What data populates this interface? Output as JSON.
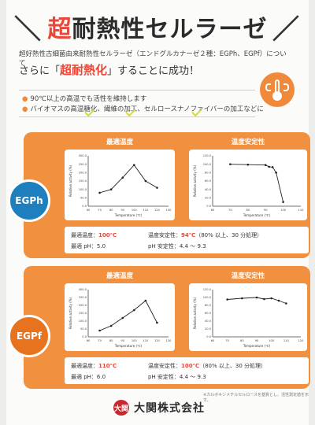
{
  "title": {
    "accent": "超",
    "rest": "耐熱性セルラーゼ"
  },
  "intro": "超好熱性古細菌由来耐熱性セルラーゼ（エンドグルカナーゼ２種：EGPh、EGPf）について",
  "lead": {
    "prefix": "さらに「",
    "accent": "超耐熱化",
    "suffix": "」することに成功！"
  },
  "icon": "thermometer-icon",
  "bullets": [
    "90℃以上の高温でも活性を維持します",
    "バイオマスの高温糖化、繊維の加工、セルロースナノファイバーの加工などに"
  ],
  "panels": [
    {
      "enzyme": "EGPh",
      "headers": {
        "optimum": "最適温度",
        "stability": "温度安定性"
      },
      "props": {
        "opt_temp_label": "最適温度：",
        "opt_temp_value": "100℃",
        "stab_label": "温度安定性：",
        "stab_value": "94℃",
        "stab_note": "（80% 以上、30 分処理）",
        "ph_label": "最適 pH：5.0",
        "ph_stab": "pH 安定性：4.4 ～ 9.3"
      }
    },
    {
      "enzyme": "EGPf",
      "headers": {
        "optimum": "最適温度",
        "stability": "温度安定性"
      },
      "props": {
        "opt_temp_label": "最適温度：",
        "opt_temp_value": "110℃",
        "stab_label": "温度安定性：",
        "stab_value": "100℃",
        "stab_note": "（80% 以上、30 分処理）",
        "ph_label": "最適 pH：6.0",
        "ph_stab": "pH 安定性：4.4 ～ 9.3"
      }
    }
  ],
  "chart_data": [
    {
      "type": "line",
      "enzyme": "EGPh",
      "kind": "optimum",
      "x": [
        70,
        80,
        90,
        100,
        110,
        120
      ],
      "y": [
        80,
        100,
        170,
        245,
        150,
        110
      ],
      "xlabel": "Temperature (℃)",
      "ylabel": "Relative activity (%)",
      "xlim": [
        60,
        130
      ],
      "ylim": [
        0,
        300
      ],
      "xticks": [
        60,
        70,
        80,
        90,
        100,
        110,
        120,
        130
      ],
      "yticks": [
        0,
        50,
        100,
        150,
        200,
        250,
        300
      ]
    },
    {
      "type": "line",
      "enzyme": "EGPh",
      "kind": "stability",
      "x": [
        70,
        80,
        90,
        92,
        94,
        96,
        100
      ],
      "y": [
        100,
        99,
        98,
        94,
        93,
        80,
        10
      ],
      "xlabel": "Temperature (℃)",
      "ylabel": "Relative activity (%)",
      "xlim": [
        60,
        110
      ],
      "ylim": [
        0,
        120
      ],
      "xticks": [
        60,
        70,
        80,
        90,
        100,
        110
      ],
      "yticks": [
        0,
        20,
        40,
        60,
        80,
        100,
        120
      ]
    },
    {
      "type": "line",
      "enzyme": "EGPf",
      "kind": "optimum",
      "x": [
        70,
        80,
        90,
        100,
        110,
        120
      ],
      "y": [
        40,
        70,
        120,
        170,
        230,
        90
      ],
      "xlabel": "Temperature (℃)",
      "ylabel": "Relative activity (%)",
      "xlim": [
        60,
        130
      ],
      "ylim": [
        0,
        300
      ],
      "xticks": [
        60,
        70,
        80,
        90,
        100,
        110,
        120,
        130
      ],
      "yticks": [
        0,
        50,
        100,
        150,
        200,
        250,
        300
      ]
    },
    {
      "type": "line",
      "enzyme": "EGPf",
      "kind": "stability",
      "x": [
        70,
        80,
        90,
        95,
        100,
        105,
        110
      ],
      "y": [
        95,
        98,
        100,
        96,
        98,
        92,
        85
      ],
      "xlabel": "Temperature (℃)",
      "ylabel": "Relative activity (%)",
      "xlim": [
        60,
        120
      ],
      "ylim": [
        0,
        120
      ],
      "xticks": [
        60,
        70,
        80,
        90,
        100,
        110,
        120
      ],
      "yticks": [
        0,
        20,
        40,
        60,
        80,
        100,
        120
      ]
    }
  ],
  "footnote": "※カルボキシメチルセルロースを基質とし、活性測定値を示す。",
  "company": {
    "mark": "大関",
    "name": "大関株式会社"
  }
}
